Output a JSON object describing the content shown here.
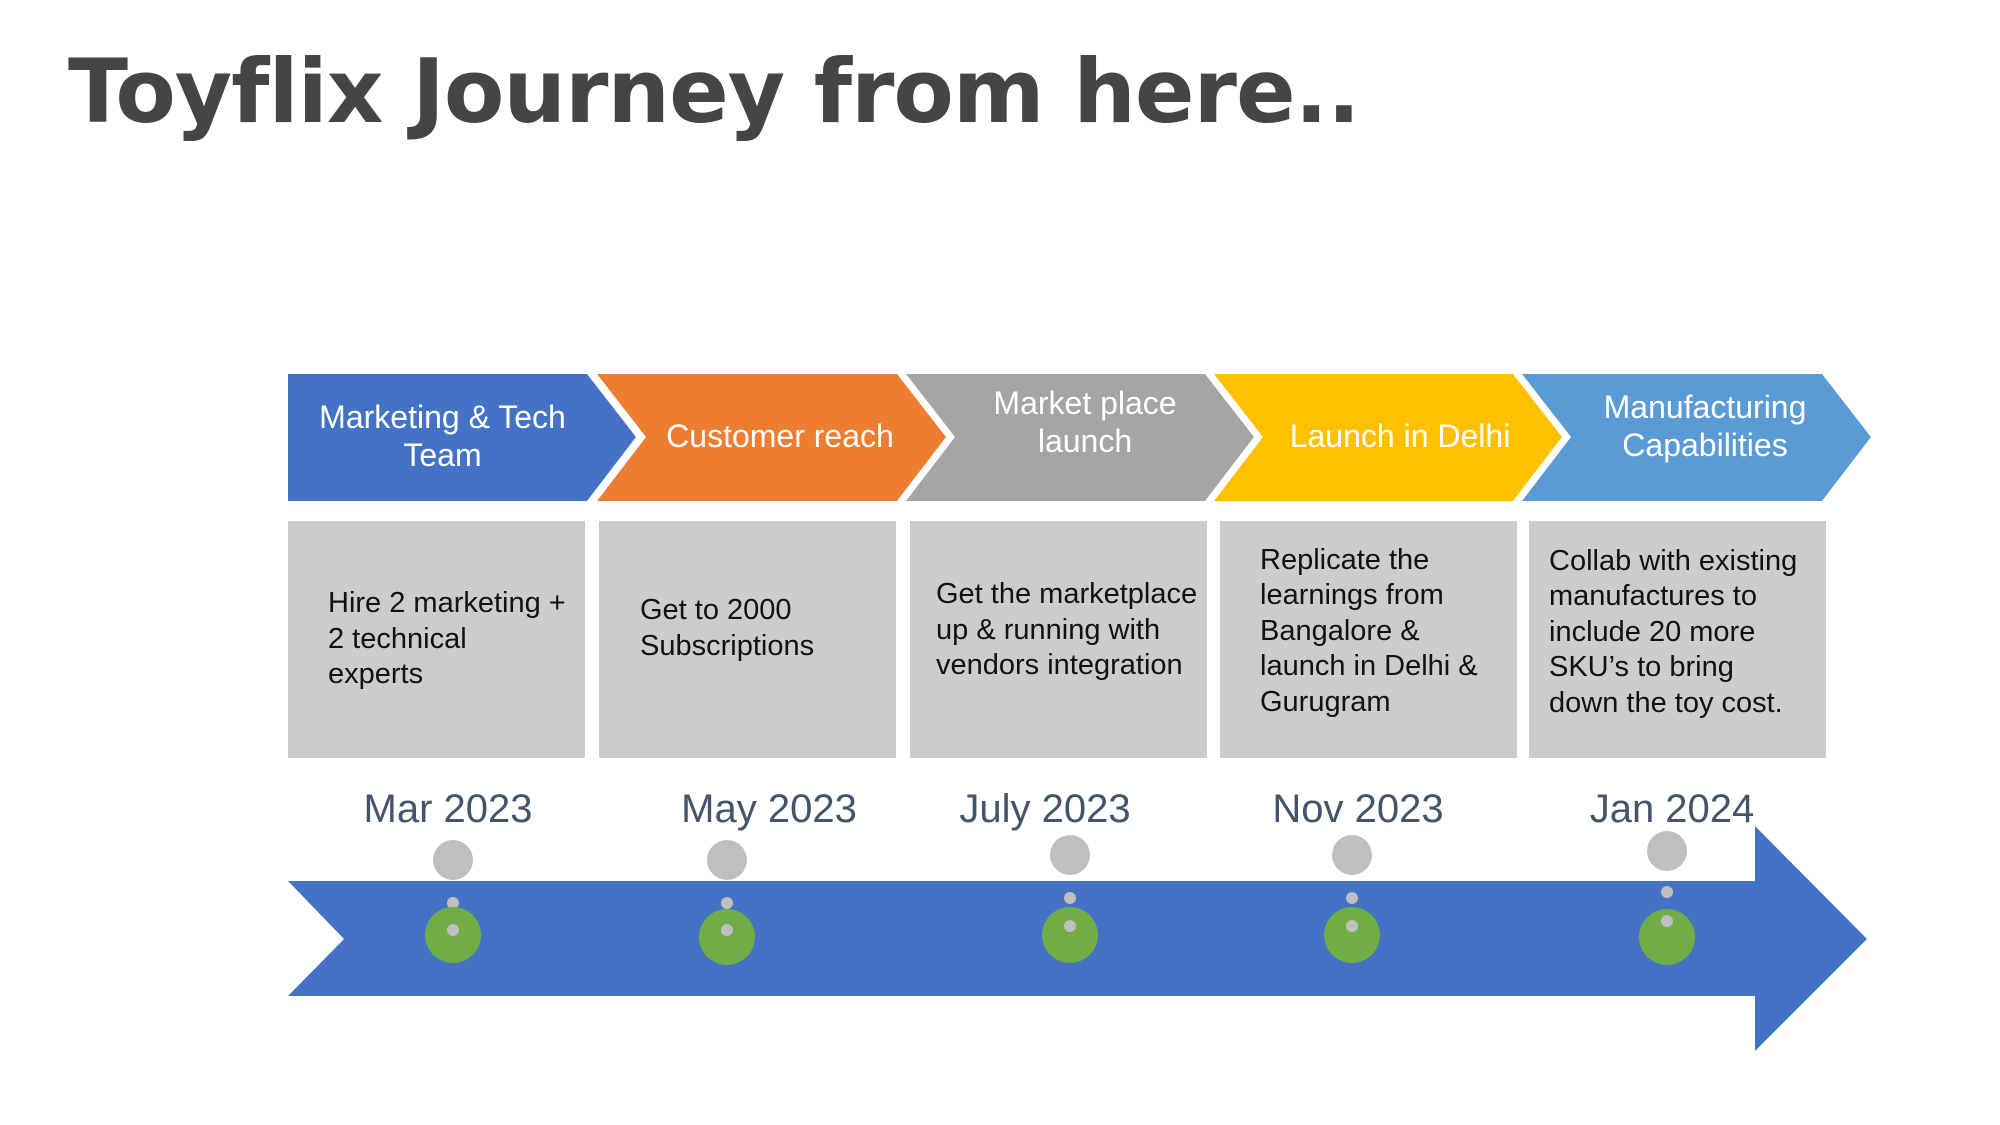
{
  "title": "Toyflix Journey from here..",
  "colors": {
    "timeline_arrow": "#4472c4",
    "milestone_dot": "#70ad47",
    "connector": "#bfbfbf",
    "box_fill": "#cccccc",
    "date_text": "#44546a"
  },
  "stages": [
    {
      "label": "Marketing & Tech\nTeam",
      "color": "#4472c4",
      "description": "Hire 2 marketing + 2 technical experts",
      "date": "Mar 2023"
    },
    {
      "label": "Customer reach",
      "color": "#ed7d31",
      "description": "Get to 2000 Subscriptions",
      "date": "May 2023"
    },
    {
      "label": "Market place\nlaunch",
      "color": "#a5a5a5",
      "description": "Get the marketplace up & running with vendors integration",
      "date": "July 2023"
    },
    {
      "label": "Launch in Delhi",
      "color": "#ffc000",
      "description": "Replicate the learnings from Bangalore & launch in Delhi & Gurugram",
      "date": "Nov 2023"
    },
    {
      "label": "Manufacturing\nCapabilities",
      "color": "#5b9bd5",
      "description": "Collab with existing manufactures to include 20 more SKU’s to bring down the toy cost.",
      "date": "Jan 2024"
    }
  ]
}
